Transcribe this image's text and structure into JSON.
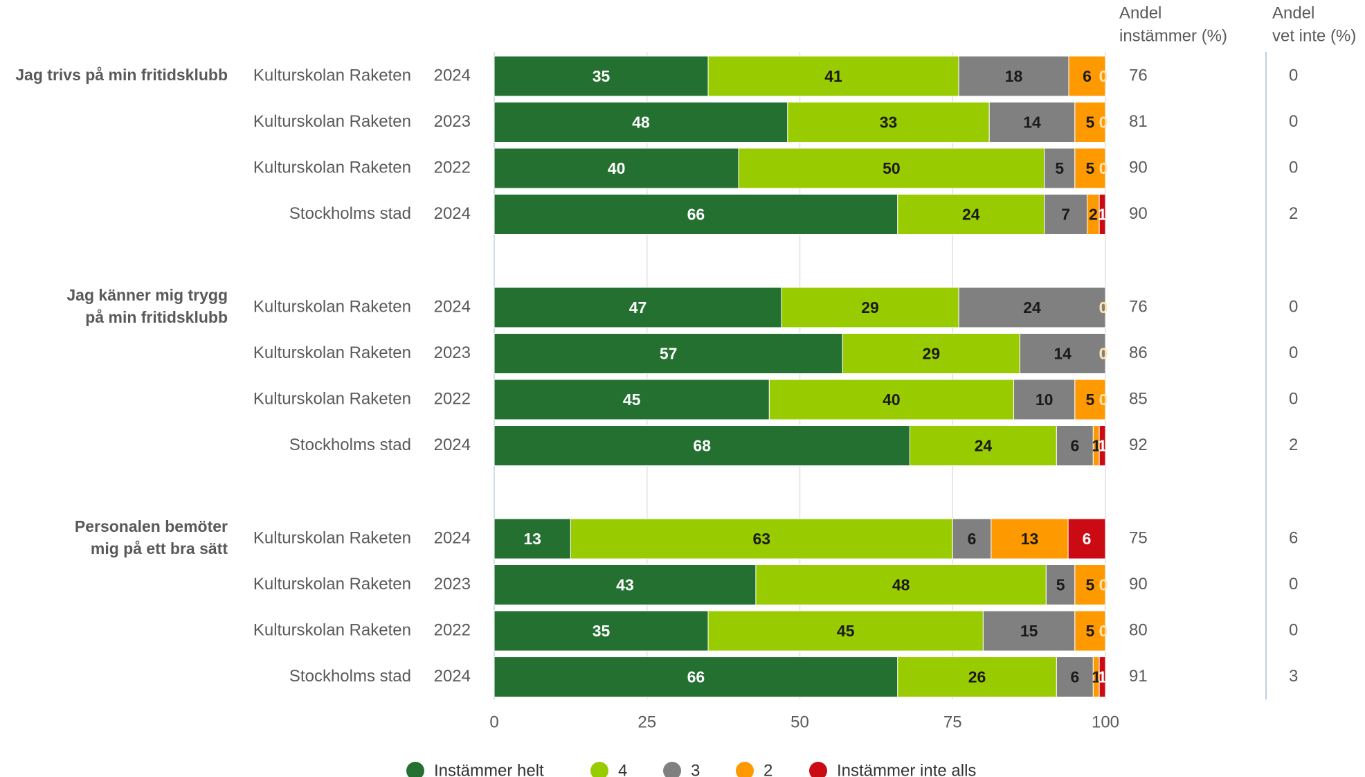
{
  "chart_data": {
    "type": "stacked-barh",
    "groups": [
      {
        "label": [
          "Jag trivs på min fritidsklubb"
        ]
      },
      {
        "label": [
          "Jag känner mig trygg",
          "på min fritidsklubb"
        ]
      },
      {
        "label": [
          "Personalen bemöter",
          "mig på ett bra sätt"
        ]
      }
    ],
    "entities": [
      "Kulturskolan Raketen",
      "Kulturskolan Raketen",
      "Kulturskolan Raketen",
      "Stockholms stad",
      "Kulturskolan Raketen",
      "Kulturskolan Raketen",
      "Kulturskolan Raketen",
      "Stockholms stad",
      "Kulturskolan Raketen",
      "Kulturskolan Raketen",
      "Kulturskolan Raketen",
      "Stockholms stad"
    ],
    "years": [
      2024,
      2023,
      2022,
      2024,
      2024,
      2023,
      2022,
      2024,
      2024,
      2023,
      2022,
      2024
    ],
    "series": [
      {
        "name": "Instämmer helt",
        "color": "#237030",
        "values": [
          35,
          48,
          40,
          66,
          47,
          57,
          45,
          68,
          12.5,
          42.8,
          35,
          66
        ],
        "value_labels": [
          "35",
          "48",
          "40",
          "66",
          "47",
          "57",
          "45",
          "68",
          "13",
          "43",
          "35",
          "66"
        ]
      },
      {
        "name": "4",
        "color": "#99cc00",
        "values": [
          41,
          33,
          50,
          24,
          29,
          29,
          40,
          24,
          62.5,
          47.5,
          45,
          26
        ],
        "value_labels": [
          "41",
          "33",
          "50",
          "24",
          "29",
          "29",
          "40",
          "24",
          "63",
          "48",
          "45",
          "26"
        ]
      },
      {
        "name": "3",
        "color": "#808080",
        "values": [
          18,
          14,
          5,
          7,
          24,
          14,
          10,
          6,
          6.3,
          4.7,
          15,
          6
        ],
        "value_labels": [
          "18",
          "14",
          "5",
          "7",
          "24",
          "14",
          "10",
          "6",
          "6",
          "5",
          "15",
          "6"
        ]
      },
      {
        "name": "2",
        "color": "#ff9900",
        "values": [
          6,
          5,
          5,
          2,
          0,
          0,
          5,
          1,
          12.6,
          5,
          5,
          1
        ],
        "value_labels": [
          "6",
          "5",
          "5",
          "2",
          "0",
          "0",
          "5",
          "1",
          "13",
          "5",
          "5",
          "1"
        ]
      },
      {
        "name": "Instämmer inte alls",
        "color": "#cc0a14",
        "values": [
          0,
          0,
          0,
          1,
          0,
          0,
          0,
          1,
          6.1,
          0,
          0,
          1
        ],
        "value_labels": [
          "0",
          "0",
          "0",
          "1",
          "0",
          "0",
          "0",
          "1",
          "6",
          "0",
          "0",
          "1"
        ]
      }
    ],
    "xlim": [
      0,
      100
    ],
    "xticks": [
      0,
      25,
      50,
      75,
      100
    ],
    "grid": true,
    "columns": [
      {
        "header": [
          "Andel",
          "instämmer (%)"
        ],
        "values": [
          76,
          81,
          90,
          90,
          76,
          86,
          85,
          92,
          75,
          90,
          80,
          91
        ]
      },
      {
        "header": [
          "Andel",
          "vet inte (%)"
        ],
        "values": [
          0,
          0,
          0,
          2,
          0,
          0,
          0,
          2,
          6,
          0,
          0,
          3
        ]
      }
    ],
    "legend": "bottom"
  }
}
